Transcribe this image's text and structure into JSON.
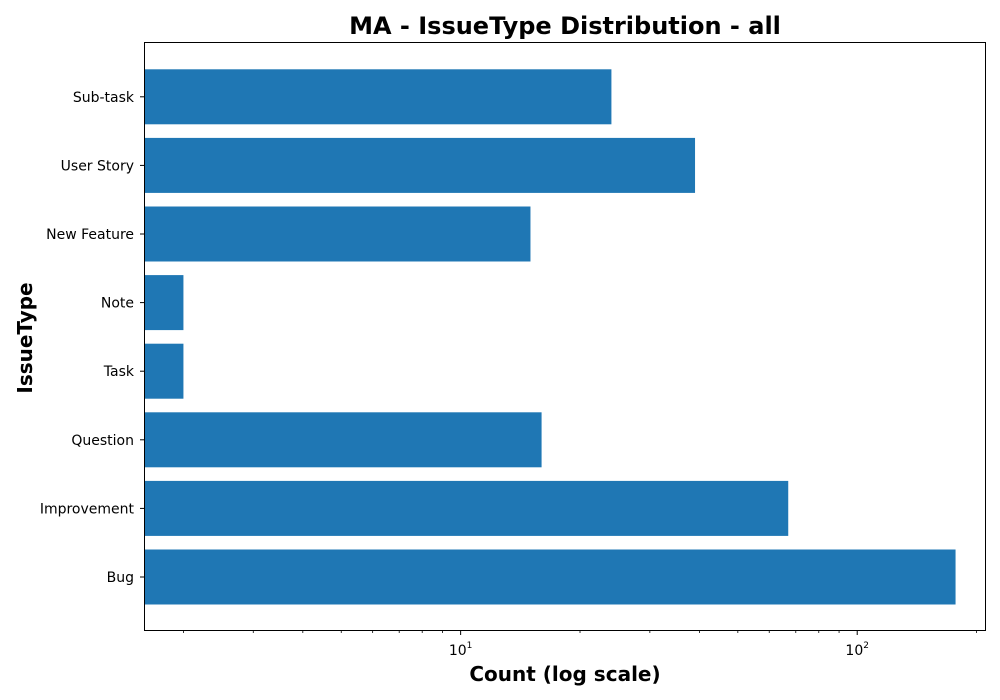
{
  "chart_data": {
    "type": "bar",
    "orientation": "horizontal",
    "title": "MA - IssueType Distribution - all",
    "xlabel": "Count (log scale)",
    "ylabel": "IssueType",
    "x_scale": "log",
    "xlim": [
      1.6,
      210
    ],
    "x_major_ticks": [
      {
        "value": 10,
        "base": "10",
        "exp": "1"
      },
      {
        "value": 100,
        "base": "10",
        "exp": "2"
      }
    ],
    "grid": false,
    "bar_color": "#1f77b4",
    "categories": [
      "Bug",
      "Improvement",
      "Question",
      "Task",
      "Note",
      "New Feature",
      "User Story",
      "Sub-task"
    ],
    "values": [
      177,
      67,
      16,
      2,
      2,
      15,
      39,
      24
    ]
  }
}
